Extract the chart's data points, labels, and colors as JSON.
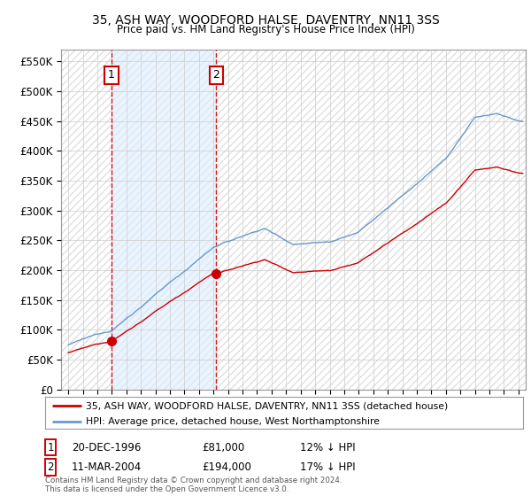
{
  "title": "35, ASH WAY, WOODFORD HALSE, DAVENTRY, NN11 3SS",
  "subtitle": "Price paid vs. HM Land Registry's House Price Index (HPI)",
  "legend_line1": "35, ASH WAY, WOODFORD HALSE, DAVENTRY, NN11 3SS (detached house)",
  "legend_line2": "HPI: Average price, detached house, West Northamptonshire",
  "annotation1_label": "1",
  "annotation1_date": "20-DEC-1996",
  "annotation1_price": "£81,000",
  "annotation1_hpi": "12% ↓ HPI",
  "annotation2_label": "2",
  "annotation2_date": "11-MAR-2004",
  "annotation2_price": "£194,000",
  "annotation2_hpi": "17% ↓ HPI",
  "copyright": "Contains HM Land Registry data © Crown copyright and database right 2024.\nThis data is licensed under the Open Government Licence v3.0.",
  "sale1_x": 1996.97,
  "sale1_y": 81000,
  "sale2_x": 2004.19,
  "sale2_y": 194000,
  "hpi_color": "#6699cc",
  "price_color": "#cc0000",
  "shade_color": "#ddeeff",
  "bg_color": "#ffffff",
  "grid_color": "#cccccc",
  "ylim": [
    0,
    570000
  ],
  "xlim_start": 1993.5,
  "xlim_end": 2025.5
}
